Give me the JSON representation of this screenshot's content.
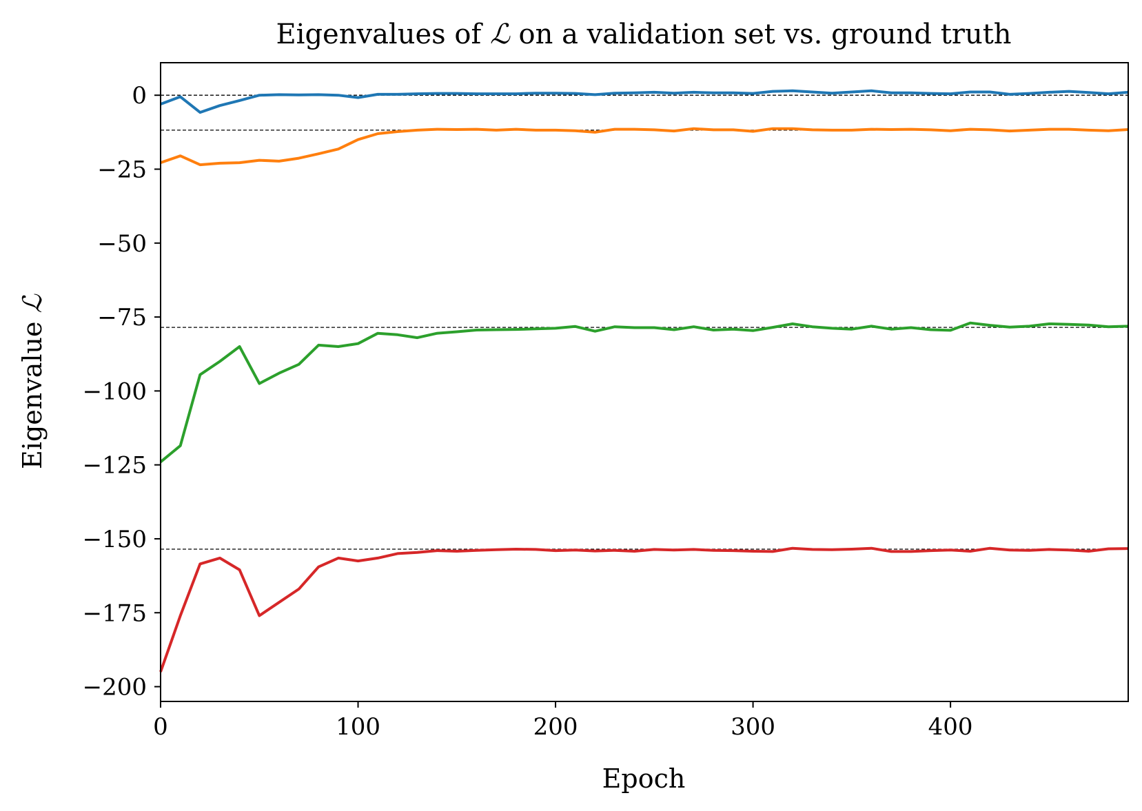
{
  "chart_data": {
    "type": "line",
    "title_prefix": "Eigenvalues of ",
    "title_symbol": "ℒ",
    "title_suffix": " on a validation set vs. ground truth",
    "xlabel": "Epoch",
    "ylabel_prefix": "Eigenvalue ",
    "ylabel_symbol": "ℒ",
    "xlim": [
      0,
      490
    ],
    "ylim": [
      -205,
      11
    ],
    "xticks": [
      0,
      100,
      200,
      300,
      400
    ],
    "yticks": [
      0,
      -25,
      -50,
      -75,
      -100,
      -125,
      -150,
      -175,
      -200
    ],
    "xtick_labels": [
      "0",
      "100",
      "200",
      "300",
      "400"
    ],
    "ytick_labels": [
      "0",
      "−25",
      "−50",
      "−75",
      "−100",
      "−125",
      "−150",
      "−175",
      "−200"
    ],
    "grid": false,
    "legend": "none",
    "x": [
      0,
      10,
      20,
      30,
      40,
      50,
      60,
      70,
      80,
      90,
      100,
      110,
      120,
      130,
      140,
      150,
      160,
      170,
      180,
      190,
      200,
      210,
      220,
      230,
      240,
      250,
      260,
      270,
      280,
      290,
      300,
      310,
      320,
      330,
      340,
      350,
      360,
      370,
      380,
      390,
      400,
      410,
      420,
      430,
      440,
      450,
      460,
      470,
      480,
      490
    ],
    "ground_truth": [
      0,
      -11.8,
      -78.5,
      -153.5
    ],
    "series": [
      {
        "color": "#1f77b4",
        "values": [
          -3,
          -0.5,
          -5.8,
          -3.5,
          -1.8,
          0,
          0.2,
          0.1,
          0.2,
          0,
          -0.8,
          0.3,
          0.3,
          0.5,
          0.6,
          0.6,
          0.5,
          0.5,
          0.5,
          0.7,
          0.7,
          0.6,
          0.2,
          0.7,
          0.8,
          1.0,
          0.7,
          1.0,
          0.8,
          0.8,
          0.6,
          1.3,
          1.5,
          1.1,
          0.7,
          1.1,
          1.5,
          0.8,
          0.8,
          0.6,
          0.5,
          1.1,
          1.1,
          0.3,
          0.6,
          1.0,
          1.3,
          0.9,
          0.5,
          1.0
        ]
      },
      {
        "color": "#ff7f0e",
        "values": [
          -22.8,
          -20.5,
          -23.5,
          -23,
          -22.8,
          -22,
          -22.3,
          -21.3,
          -19.8,
          -18.2,
          -15,
          -13,
          -12.3,
          -11.8,
          -11.5,
          -11.6,
          -11.5,
          -11.8,
          -11.5,
          -11.8,
          -11.8,
          -12,
          -12.5,
          -11.5,
          -11.5,
          -11.7,
          -12.1,
          -11.3,
          -11.7,
          -11.7,
          -12.2,
          -11.3,
          -11.3,
          -11.7,
          -11.8,
          -11.8,
          -11.5,
          -11.6,
          -11.5,
          -11.7,
          -12,
          -11.5,
          -11.7,
          -12.1,
          -11.8,
          -11.5,
          -11.5,
          -11.8,
          -12,
          -11.6
        ]
      },
      {
        "color": "#2ca02c",
        "values": [
          -124,
          -118.5,
          -94.5,
          -90,
          -85,
          -97.5,
          -94,
          -91,
          -84.5,
          -85,
          -84,
          -80.5,
          -81,
          -82,
          -80.5,
          -80,
          -79.4,
          -79.3,
          -79.2,
          -79,
          -78.8,
          -78.2,
          -79.8,
          -78.3,
          -78.6,
          -78.6,
          -79.3,
          -78.3,
          -79.4,
          -79.1,
          -79.6,
          -78.5,
          -77.3,
          -78.3,
          -78.8,
          -79.1,
          -78.1,
          -79.1,
          -78.6,
          -79.3,
          -79.5,
          -77,
          -77.8,
          -78.4,
          -78.1,
          -77.3,
          -77.5,
          -77.7,
          -78.3,
          -78.1
        ]
      },
      {
        "color": "#d62728",
        "values": [
          -195,
          -176,
          -158.5,
          -156.5,
          -160.5,
          -176,
          -171.5,
          -167,
          -159.5,
          -156.5,
          -157.5,
          -156.5,
          -155,
          -154.6,
          -154,
          -154.2,
          -153.9,
          -153.7,
          -153.5,
          -153.6,
          -154,
          -153.8,
          -154.1,
          -153.9,
          -154.2,
          -153.6,
          -153.8,
          -153.6,
          -153.9,
          -154,
          -154.2,
          -154.3,
          -153.2,
          -153.6,
          -153.7,
          -153.5,
          -153.2,
          -154.3,
          -154.3,
          -154,
          -153.8,
          -154.2,
          -153.2,
          -153.8,
          -153.9,
          -153.6,
          -153.8,
          -154.2,
          -153.4,
          -153.3
        ]
      }
    ]
  }
}
